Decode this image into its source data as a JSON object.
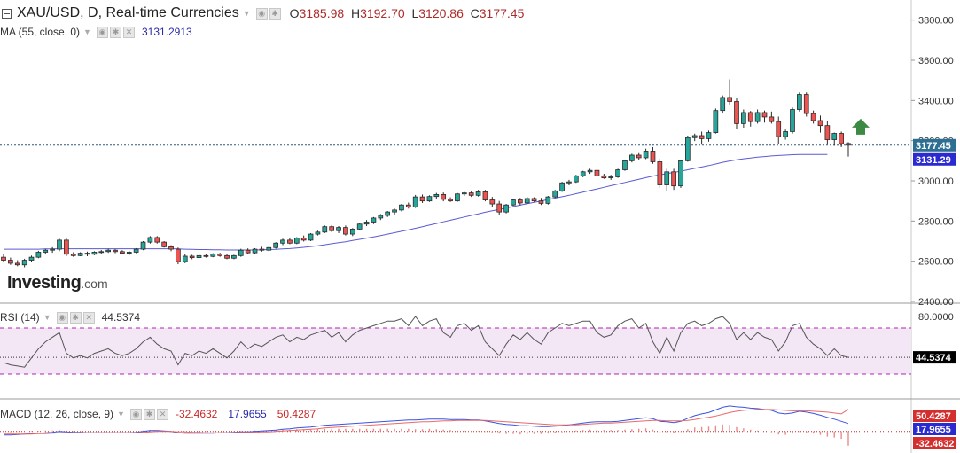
{
  "header": {
    "symbol": "XAU/USD, D, Real-time Currencies",
    "open_label": "O",
    "open": "3185.98",
    "high_label": "H",
    "high": "3192.70",
    "low_label": "L",
    "low": "3120.86",
    "close_label": "C",
    "close": "3177.45"
  },
  "ma_legend": {
    "label": "MA (55, close, 0)",
    "value": "3131.2913"
  },
  "rsi_legend": {
    "label": "RSI (14)",
    "value": "44.5374"
  },
  "macd_legend": {
    "label": "MACD (12, 26, close, 9)",
    "hist": "-32.4632",
    "macd": "17.9655",
    "signal": "50.4287"
  },
  "logo": {
    "brand": "Investing",
    "suffix": ".com"
  },
  "colors": {
    "up": "#26a69a",
    "down": "#ef5350",
    "ma": "#5b5bd6",
    "rsi": "#555555",
    "rsi_band": "#f3e6f5",
    "rsi_dash": "#b026b0",
    "macd": "#3a53e0",
    "signal": "#e86a6a",
    "arrow": "#3c8a43",
    "hist": "#e88c8c"
  },
  "chart_data": [
    {
      "type": "candlestick",
      "title": "XAU/USD, D, Real-time Currencies",
      "ylim": [
        2400,
        3900
      ],
      "y_ticks": [
        "3800.00",
        "3600.00",
        "3400.00",
        "3200.00",
        "3000.00",
        "2800.00",
        "2600.00",
        "2400.00"
      ],
      "last_price": "3177.45",
      "last_price_value": 3177.45,
      "ma_price": "3131.29",
      "ma_price_value": 3131.29,
      "ohlc": [
        [
          2620,
          2636,
          2596,
          2605
        ],
        [
          2605,
          2618,
          2582,
          2590
        ],
        [
          2590,
          2605,
          2575,
          2582
        ],
        [
          2582,
          2612,
          2570,
          2605
        ],
        [
          2605,
          2628,
          2598,
          2620
        ],
        [
          2620,
          2652,
          2615,
          2645
        ],
        [
          2645,
          2662,
          2638,
          2655
        ],
        [
          2655,
          2670,
          2642,
          2660
        ],
        [
          2660,
          2712,
          2650,
          2705
        ],
        [
          2705,
          2718,
          2625,
          2635
        ],
        [
          2635,
          2645,
          2622,
          2628
        ],
        [
          2628,
          2645,
          2625,
          2640
        ],
        [
          2640,
          2648,
          2625,
          2635
        ],
        [
          2635,
          2650,
          2630,
          2645
        ],
        [
          2645,
          2656,
          2638,
          2648
        ],
        [
          2648,
          2662,
          2642,
          2655
        ],
        [
          2655,
          2660,
          2640,
          2648
        ],
        [
          2648,
          2655,
          2635,
          2640
        ],
        [
          2640,
          2652,
          2630,
          2645
        ],
        [
          2645,
          2665,
          2640,
          2660
        ],
        [
          2660,
          2700,
          2655,
          2695
        ],
        [
          2695,
          2725,
          2688,
          2718
        ],
        [
          2718,
          2725,
          2688,
          2695
        ],
        [
          2695,
          2700,
          2668,
          2672
        ],
        [
          2672,
          2680,
          2650,
          2660
        ],
        [
          2660,
          2668,
          2585,
          2598
        ],
        [
          2598,
          2635,
          2590,
          2625
        ],
        [
          2625,
          2632,
          2610,
          2618
        ],
        [
          2618,
          2632,
          2612,
          2628
        ],
        [
          2628,
          2636,
          2618,
          2624
        ],
        [
          2624,
          2640,
          2620,
          2636
        ],
        [
          2636,
          2642,
          2622,
          2628
        ],
        [
          2628,
          2634,
          2610,
          2615
        ],
        [
          2615,
          2632,
          2610,
          2628
        ],
        [
          2628,
          2662,
          2622,
          2655
        ],
        [
          2655,
          2664,
          2638,
          2642
        ],
        [
          2642,
          2665,
          2638,
          2660
        ],
        [
          2660,
          2672,
          2648,
          2655
        ],
        [
          2655,
          2670,
          2650,
          2668
        ],
        [
          2668,
          2695,
          2662,
          2690
        ],
        [
          2690,
          2712,
          2680,
          2705
        ],
        [
          2705,
          2715,
          2685,
          2690
        ],
        [
          2690,
          2720,
          2685,
          2715
        ],
        [
          2715,
          2728,
          2698,
          2705
        ],
        [
          2705,
          2740,
          2700,
          2735
        ],
        [
          2735,
          2752,
          2728,
          2745
        ],
        [
          2745,
          2778,
          2740,
          2772
        ],
        [
          2772,
          2780,
          2745,
          2752
        ],
        [
          2752,
          2775,
          2740,
          2768
        ],
        [
          2768,
          2778,
          2728,
          2735
        ],
        [
          2735,
          2765,
          2725,
          2760
        ],
        [
          2760,
          2790,
          2755,
          2785
        ],
        [
          2785,
          2805,
          2775,
          2795
        ],
        [
          2795,
          2820,
          2785,
          2815
        ],
        [
          2815,
          2835,
          2805,
          2828
        ],
        [
          2828,
          2850,
          2820,
          2845
        ],
        [
          2845,
          2862,
          2832,
          2855
        ],
        [
          2855,
          2885,
          2848,
          2880
        ],
        [
          2880,
          2892,
          2862,
          2870
        ],
        [
          2870,
          2930,
          2865,
          2920
        ],
        [
          2920,
          2932,
          2890,
          2900
        ],
        [
          2900,
          2928,
          2895,
          2922
        ],
        [
          2922,
          2940,
          2910,
          2932
        ],
        [
          2932,
          2942,
          2898,
          2908
        ],
        [
          2908,
          2918,
          2895,
          2900
        ],
        [
          2900,
          2940,
          2895,
          2935
        ],
        [
          2935,
          2945,
          2925,
          2940
        ],
        [
          2940,
          2950,
          2920,
          2928
        ],
        [
          2928,
          2955,
          2922,
          2945
        ],
        [
          2945,
          2955,
          2898,
          2905
        ],
        [
          2905,
          2920,
          2870,
          2885
        ],
        [
          2885,
          2900,
          2830,
          2845
        ],
        [
          2845,
          2885,
          2838,
          2880
        ],
        [
          2880,
          2910,
          2875,
          2905
        ],
        [
          2905,
          2915,
          2878,
          2890
        ],
        [
          2890,
          2920,
          2885,
          2912
        ],
        [
          2912,
          2918,
          2895,
          2900
        ],
        [
          2900,
          2915,
          2880,
          2888
        ],
        [
          2888,
          2925,
          2882,
          2920
        ],
        [
          2920,
          2955,
          2915,
          2950
        ],
        [
          2950,
          2995,
          2945,
          2990
        ],
        [
          2990,
          3005,
          2978,
          2995
        ],
        [
          2995,
          3030,
          2990,
          3025
        ],
        [
          3025,
          3050,
          3018,
          3045
        ],
        [
          3045,
          3060,
          3035,
          3052
        ],
        [
          3052,
          3058,
          3020,
          3025
        ],
        [
          3025,
          3035,
          3010,
          3015
        ],
        [
          3015,
          3030,
          3005,
          3020
        ],
        [
          3020,
          3060,
          3015,
          3055
        ],
        [
          3055,
          3105,
          3050,
          3100
        ],
        [
          3100,
          3135,
          3092,
          3128
        ],
        [
          3128,
          3138,
          3105,
          3115
        ],
        [
          3115,
          3160,
          3108,
          3148
        ],
        [
          3148,
          3168,
          3085,
          3095
        ],
        [
          3095,
          3110,
          2965,
          2980
        ],
        [
          2980,
          3060,
          2950,
          3045
        ],
        [
          3045,
          3060,
          2955,
          2975
        ],
        [
          2975,
          3105,
          2965,
          3100
        ],
        [
          3100,
          3225,
          3095,
          3215
        ],
        [
          3215,
          3235,
          3198,
          3225
        ],
        [
          3225,
          3245,
          3180,
          3210
        ],
        [
          3210,
          3250,
          3195,
          3240
        ],
        [
          3240,
          3360,
          3235,
          3350
        ],
        [
          3350,
          3425,
          3335,
          3415
        ],
        [
          3415,
          3505,
          3380,
          3395
        ],
        [
          3395,
          3410,
          3260,
          3285
        ],
        [
          3285,
          3355,
          3265,
          3340
        ],
        [
          3340,
          3348,
          3270,
          3295
        ],
        [
          3295,
          3355,
          3285,
          3340
        ],
        [
          3340,
          3350,
          3290,
          3318
        ],
        [
          3318,
          3345,
          3285,
          3295
        ],
        [
          3295,
          3320,
          3185,
          3220
        ],
        [
          3220,
          3255,
          3205,
          3245
        ],
        [
          3245,
          3365,
          3235,
          3355
        ],
        [
          3355,
          3440,
          3345,
          3430
        ],
        [
          3430,
          3440,
          3320,
          3335
        ],
        [
          3335,
          3350,
          3285,
          3300
        ],
        [
          3300,
          3325,
          3240,
          3275
        ],
        [
          3275,
          3300,
          3180,
          3205
        ],
        [
          3205,
          3240,
          3175,
          3236
        ],
        [
          3236,
          3245,
          3168,
          3185
        ],
        [
          3185.98,
          3192.7,
          3120.86,
          3177.45
        ]
      ],
      "ma": [
        2660,
        2660,
        2660,
        2660,
        2660,
        2660,
        2661,
        2661,
        2662,
        2662,
        2662,
        2662,
        2662,
        2662,
        2662,
        2662,
        2662,
        2662,
        2662,
        2662,
        2662,
        2662,
        2662,
        2662,
        2662,
        2661,
        2660,
        2659,
        2658,
        2658,
        2657,
        2657,
        2656,
        2656,
        2656,
        2656,
        2656,
        2657,
        2658,
        2659,
        2661,
        2663,
        2666,
        2669,
        2673,
        2677,
        2682,
        2687,
        2692,
        2697,
        2703,
        2709,
        2715,
        2721,
        2728,
        2735,
        2742,
        2749,
        2756,
        2764,
        2772,
        2780,
        2788,
        2796,
        2804,
        2812,
        2820,
        2828,
        2836,
        2844,
        2851,
        2858,
        2865,
        2872,
        2879,
        2886,
        2893,
        2900,
        2907,
        2914,
        2921,
        2928,
        2936,
        2944,
        2952,
        2960,
        2968,
        2976,
        2984,
        2992,
        3000,
        3008,
        3016,
        3024,
        3030,
        3036,
        3042,
        3048,
        3055,
        3062,
        3069,
        3076,
        3084,
        3092,
        3099,
        3105,
        3110,
        3114,
        3118,
        3121,
        3124,
        3126,
        3128,
        3130,
        3131,
        3131,
        3131,
        3131,
        3131.29
      ],
      "ma_label": "MA (55, close, 0)"
    },
    {
      "type": "line",
      "name": "RSI (14)",
      "ylim": [
        10,
        90
      ],
      "levels": [
        70,
        30
      ],
      "y_ticks": [
        "80.0000"
      ],
      "last_value": "44.5374",
      "last_value_num": 44.5374,
      "values": [
        40,
        38,
        37,
        36,
        44,
        52,
        58,
        62,
        66,
        48,
        44,
        46,
        44,
        48,
        50,
        52,
        48,
        46,
        48,
        52,
        58,
        62,
        56,
        52,
        50,
        38,
        48,
        46,
        50,
        48,
        52,
        48,
        44,
        50,
        58,
        52,
        56,
        54,
        58,
        62,
        64,
        58,
        62,
        60,
        64,
        66,
        68,
        62,
        66,
        58,
        64,
        68,
        70,
        72,
        74,
        76,
        76,
        78,
        72,
        80,
        72,
        76,
        78,
        66,
        62,
        72,
        74,
        68,
        72,
        58,
        52,
        46,
        56,
        64,
        60,
        66,
        60,
        56,
        66,
        70,
        74,
        72,
        74,
        76,
        76,
        66,
        62,
        64,
        72,
        76,
        78,
        70,
        74,
        58,
        48,
        62,
        50,
        66,
        74,
        76,
        72,
        74,
        78,
        80,
        74,
        60,
        66,
        60,
        66,
        62,
        60,
        50,
        58,
        72,
        74,
        62,
        56,
        52,
        46,
        52,
        46,
        44.5374
      ]
    },
    {
      "type": "line",
      "name": "MACD (12, 26, close, 9)",
      "ylim": [
        -45,
        70
      ],
      "y_ticks": [
        "50.4287",
        "17.9655",
        "-32.4632"
      ],
      "macd": [
        -8,
        -8,
        -7,
        -6,
        -5,
        -4,
        -3,
        -2,
        0,
        -1,
        -2,
        -2,
        -3,
        -3,
        -3,
        -3,
        -3,
        -3,
        -3,
        -2,
        0,
        2,
        2,
        1,
        0,
        -3,
        -4,
        -4,
        -4,
        -4,
        -4,
        -3,
        -3,
        -2,
        -1,
        -1,
        0,
        1,
        2,
        3,
        5,
        6,
        8,
        9,
        10,
        12,
        14,
        15,
        16,
        17,
        18,
        19,
        20,
        21,
        22,
        23,
        24,
        25,
        26,
        26,
        27,
        28,
        28,
        28,
        27,
        27,
        27,
        26,
        26,
        24,
        21,
        18,
        16,
        15,
        13,
        13,
        12,
        11,
        11,
        12,
        13,
        15,
        17,
        19,
        21,
        22,
        22,
        22,
        23,
        25,
        27,
        29,
        31,
        29,
        23,
        22,
        20,
        23,
        30,
        36,
        40,
        43,
        49,
        55,
        58,
        56,
        55,
        53,
        52,
        50,
        48,
        42,
        40,
        42,
        46,
        44,
        41,
        37,
        32,
        28,
        23,
        17.9655
      ],
      "signal": [
        -6,
        -6,
        -6,
        -6,
        -6,
        -5,
        -5,
        -4,
        -3,
        -3,
        -3,
        -3,
        -3,
        -3,
        -3,
        -3,
        -3,
        -3,
        -3,
        -3,
        -2,
        -1,
        0,
        0,
        0,
        -1,
        -1,
        -2,
        -2,
        -3,
        -3,
        -3,
        -3,
        -3,
        -2,
        -2,
        -2,
        -1,
        -1,
        0,
        1,
        2,
        3,
        4,
        5,
        6,
        8,
        9,
        10,
        11,
        12,
        13,
        14,
        15,
        16,
        17,
        18,
        19,
        20,
        21,
        22,
        22,
        23,
        24,
        24,
        25,
        25,
        25,
        25,
        25,
        24,
        23,
        22,
        21,
        20,
        19,
        18,
        17,
        16,
        15,
        15,
        15,
        15,
        16,
        17,
        18,
        19,
        19,
        20,
        21,
        22,
        23,
        24,
        25,
        25,
        24,
        24,
        24,
        25,
        27,
        30,
        32,
        35,
        39,
        43,
        46,
        48,
        49,
        50,
        50,
        50,
        49,
        48,
        47,
        47,
        47,
        46,
        45,
        44,
        42,
        40,
        50.4287
      ],
      "histogram": [
        -2,
        -2,
        -1,
        0,
        1,
        1,
        2,
        2,
        3,
        2,
        1,
        1,
        0,
        0,
        0,
        0,
        0,
        0,
        0,
        1,
        2,
        3,
        2,
        1,
        0,
        -2,
        -3,
        -2,
        -2,
        -1,
        -1,
        0,
        0,
        1,
        1,
        1,
        2,
        2,
        3,
        3,
        4,
        4,
        5,
        5,
        5,
        6,
        6,
        6,
        6,
        6,
        6,
        6,
        6,
        6,
        6,
        6,
        6,
        6,
        6,
        5,
        5,
        6,
        5,
        4,
        3,
        2,
        2,
        1,
        1,
        -1,
        -3,
        -5,
        -6,
        -6,
        -7,
        -6,
        -6,
        -6,
        -5,
        -3,
        -2,
        0,
        2,
        3,
        4,
        4,
        3,
        3,
        3,
        4,
        5,
        6,
        7,
        4,
        -2,
        -2,
        -4,
        -1,
        5,
        9,
        10,
        11,
        14,
        16,
        15,
        10,
        7,
        4,
        2,
        0,
        -2,
        -7,
        -8,
        -5,
        -1,
        -3,
        -5,
        -8,
        -12,
        -14,
        -17,
        -32.4632
      ]
    }
  ]
}
